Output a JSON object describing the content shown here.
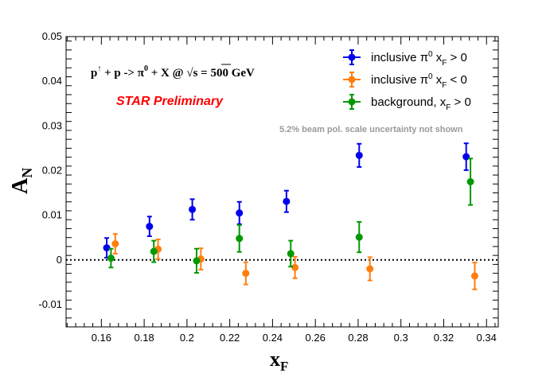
{
  "chart_data": {
    "type": "scatter",
    "title": "",
    "xlabel": "x",
    "xlabel_sub": "F",
    "ylabel": "A",
    "ylabel_sub": "N",
    "xlim": [
      0.1435,
      0.3455
    ],
    "ylim": [
      -0.015,
      0.05
    ],
    "xticks": [
      0.16,
      0.18,
      0.2,
      0.22,
      0.24,
      0.26,
      0.28,
      0.3,
      0.32,
      0.34
    ],
    "xtick_labels": [
      "0.16",
      "0.18",
      "0.2",
      "0.22",
      "0.24",
      "0.26",
      "0.28",
      "0.3",
      "0.32",
      "0.34"
    ],
    "yticks": [
      -0.01,
      0,
      0.01,
      0.02,
      0.03,
      0.04,
      0.05
    ],
    "ytick_labels": [
      "-0.01",
      "0",
      "0.01",
      "0.02",
      "0.03",
      "0.04",
      "0.05"
    ],
    "zero_line": "dotted",
    "grid": false,
    "legend_position": "top-right",
    "series": [
      {
        "name_parts": [
          "inclusive π",
          "0",
          " x",
          "F",
          " > 0"
        ],
        "color": "#0000ee",
        "points": [
          {
            "x": 0.1625,
            "y": 0.0027,
            "err": 0.0022
          },
          {
            "x": 0.1825,
            "y": 0.0075,
            "err": 0.0022
          },
          {
            "x": 0.2025,
            "y": 0.0113,
            "err": 0.0023
          },
          {
            "x": 0.2245,
            "y": 0.0105,
            "err": 0.0025
          },
          {
            "x": 0.2465,
            "y": 0.0131,
            "err": 0.0024
          },
          {
            "x": 0.2805,
            "y": 0.0234,
            "err": 0.0026
          },
          {
            "x": 0.3305,
            "y": 0.0231,
            "err": 0.003
          }
        ]
      },
      {
        "name_parts": [
          "inclusive π",
          "0",
          " x",
          "F",
          " < 0"
        ],
        "color": "#ff7f0e",
        "points": [
          {
            "x": 0.1665,
            "y": 0.0036,
            "err": 0.0022
          },
          {
            "x": 0.1865,
            "y": 0.0024,
            "err": 0.0022
          },
          {
            "x": 0.2065,
            "y": 0.0002,
            "err": 0.0024
          },
          {
            "x": 0.2275,
            "y": -0.003,
            "err": 0.0025
          },
          {
            "x": 0.2505,
            "y": -0.0017,
            "err": 0.0024
          },
          {
            "x": 0.2855,
            "y": -0.002,
            "err": 0.0026
          },
          {
            "x": 0.3345,
            "y": -0.0036,
            "err": 0.003
          }
        ]
      },
      {
        "name_parts": [
          "background, x",
          "F",
          " > 0"
        ],
        "color": "#009900",
        "points": [
          {
            "x": 0.1645,
            "y": 0.0004,
            "err": 0.0021
          },
          {
            "x": 0.1845,
            "y": 0.0019,
            "err": 0.0024
          },
          {
            "x": 0.2045,
            "y": -0.0002,
            "err": 0.0027
          },
          {
            "x": 0.2245,
            "y": 0.0048,
            "err": 0.003
          },
          {
            "x": 0.2485,
            "y": 0.0014,
            "err": 0.0029
          },
          {
            "x": 0.2805,
            "y": 0.0051,
            "err": 0.0034
          },
          {
            "x": 0.3325,
            "y": 0.0175,
            "err": 0.0052
          }
        ]
      }
    ],
    "annotations": {
      "reaction_parts": [
        "p",
        "↑",
        " + p ->  π",
        "0",
        " + X @  ",
        "√s",
        " = 500 GeV"
      ],
      "preliminary": "STAR Preliminary",
      "note": "5.2% beam pol. scale uncertainty not shown"
    }
  }
}
